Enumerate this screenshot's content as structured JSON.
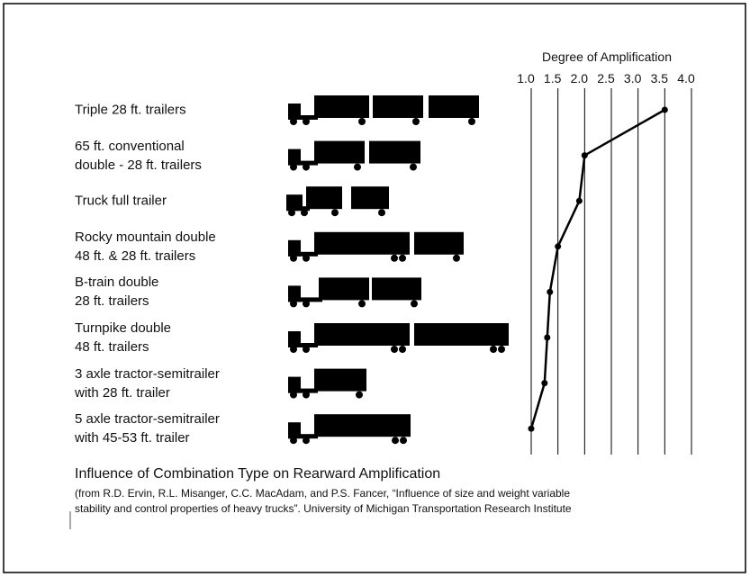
{
  "chart_data": {
    "type": "line",
    "title": "Influence of Combination Type on Rearward Amplification",
    "source": "(from R.D. Ervin, R.L. Misanger, C.C. MacAdam, and P.S. Fancer, “Influence of size and weight variable\nstability and control properties of heavy trucks”. University of Michigan Transportation Research Institute",
    "x_label": "Degree of Amplification",
    "categories": [
      "Triple 28 ft. trailers",
      "65 ft. conventional\ndouble - 28 ft. trailers",
      "Truck full trailer",
      "Rocky mountain double\n48 ft. & 28 ft. trailers",
      "B-train double\n28 ft. trailers",
      "Turnpike double\n48 ft. trailers",
      "3 axle tractor-semitrailer\nwith 28 ft. trailer",
      "5 axle tractor-semitrailer\nwith 45-53 ft. trailer"
    ],
    "values": [
      3.5,
      2.0,
      1.9,
      1.5,
      1.35,
      1.3,
      1.25,
      1.0
    ],
    "color": "#000000",
    "xlim": [
      1.0,
      4.0
    ],
    "xticks": [
      {
        "value": 1.0,
        "label": "1.0"
      },
      1.5,
      {
        "value": 2.0,
        "label": "2.0"
      },
      2.5,
      {
        "value": 3.0,
        "label": "3.0"
      },
      3.5,
      {
        "value": 4.0,
        "label": "4.0"
      }
    ],
    "grid": true
  }
}
